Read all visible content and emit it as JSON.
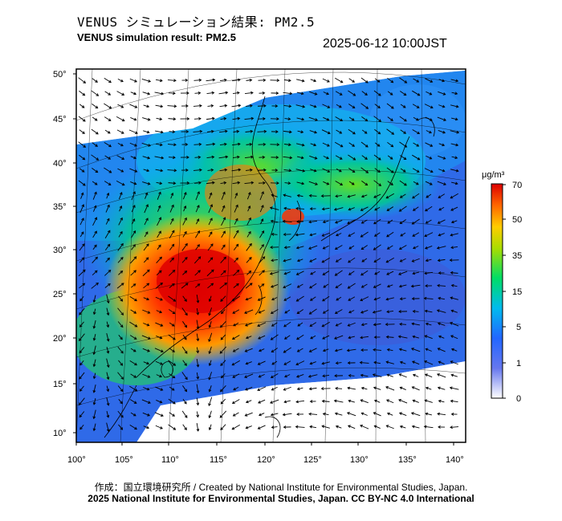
{
  "header": {
    "title_ja": "VENUS シミュレーション結果: PM2.5",
    "title_en": "VENUS simulation result: PM2.5",
    "timestamp": "2025-06-12 10:00JST"
  },
  "map": {
    "lat_ticks": [
      "50°",
      "45°",
      "40°",
      "35°",
      "30°",
      "25°",
      "20°",
      "15°",
      "10°"
    ],
    "lon_ticks": [
      "100°",
      "105°",
      "110°",
      "115°",
      "120°",
      "125°",
      "130°",
      "135°",
      "140°"
    ]
  },
  "colorbar": {
    "unit": "μg/m³",
    "labels": [
      "70",
      "50",
      "35",
      "15",
      "5",
      "1",
      "0"
    ],
    "colors": [
      "#ffffff",
      "#3355dd",
      "#00aaff",
      "#00dd77",
      "#88dd00",
      "#ffcc00",
      "#ff6600",
      "#dd0000"
    ]
  },
  "footer": {
    "credit_line1": "作成：国立環境研究所 / Created by National Institute for Environmental Studies, Japan.",
    "credit_line2": "2025 National Institute for Environmental Studies, Japan. CC BY-NC 4.0 International"
  }
}
